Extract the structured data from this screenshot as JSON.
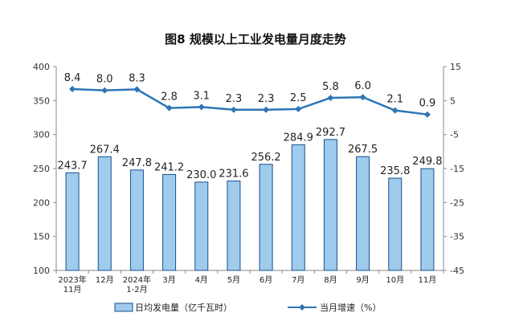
{
  "chart_data": {
    "type": "bar+line",
    "title": "图8  规模以上工业发电量月度走势",
    "categories": [
      [
        "2023年",
        "11月"
      ],
      [
        "12月"
      ],
      [
        "2024年",
        "1-2月"
      ],
      [
        "3月"
      ],
      [
        "4月"
      ],
      [
        "5月"
      ],
      [
        "6月"
      ],
      [
        "7月"
      ],
      [
        "8月"
      ],
      [
        "9月"
      ],
      [
        "10月"
      ],
      [
        "11月"
      ]
    ],
    "series": [
      {
        "name": "日均发电量（亿千瓦时）",
        "type": "bar",
        "axis": "left",
        "values": [
          243.7,
          267.4,
          247.8,
          241.2,
          230.0,
          231.6,
          256.2,
          284.9,
          292.7,
          267.5,
          235.8,
          249.8
        ],
        "labels": [
          "243.7",
          "267.4",
          "247.8",
          "241.2",
          "230.0",
          "231.6",
          "256.2",
          "284.9",
          "292.7",
          "267.5",
          "235.8",
          "249.8"
        ]
      },
      {
        "name": "当月增速（%）",
        "type": "line",
        "axis": "right",
        "values": [
          8.4,
          8.0,
          8.3,
          2.8,
          3.1,
          2.3,
          2.3,
          2.5,
          5.8,
          6.0,
          2.1,
          0.9
        ],
        "labels": [
          "8.4",
          "8.0",
          "8.3",
          "2.8",
          "3.1",
          "2.3",
          "2.3",
          "2.5",
          "5.8",
          "6.0",
          "2.1",
          "0.9"
        ]
      }
    ],
    "y_left": {
      "min": 100,
      "max": 400,
      "ticks": [
        "100",
        "150",
        "200",
        "250",
        "300",
        "350",
        "400"
      ]
    },
    "y_right": {
      "min": -45,
      "max": 15,
      "ticks": [
        "-45",
        "-35",
        "-25",
        "-15",
        "-5",
        "5",
        "15"
      ]
    },
    "legend_position": "bottom",
    "grid": false,
    "colors": {
      "bar_fill": "#9fcbed",
      "bar_stroke": "#1a4f8a",
      "line": "#2e75b6",
      "axis": "#888888"
    }
  }
}
